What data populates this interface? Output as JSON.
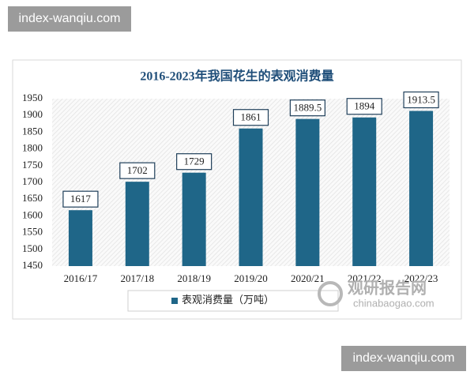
{
  "chart_data": {
    "type": "bar",
    "title": "2016-2023年我国花生的表观消费量",
    "categories": [
      "2016/17",
      "2017/18",
      "2018/19",
      "2019/20",
      "2020/21",
      "2021/22",
      "2022/23"
    ],
    "series": [
      {
        "name": "表观消费量（万吨）",
        "color": "#1f6688",
        "values": [
          1617,
          1702,
          1729,
          1861,
          1889.5,
          1894,
          1913.5
        ]
      }
    ],
    "ylim": [
      1450,
      1950
    ],
    "yticks": [
      1450,
      1500,
      1550,
      1600,
      1650,
      1700,
      1750,
      1800,
      1850,
      1900,
      1950
    ],
    "legend": "bottom"
  },
  "watermarks": [
    "index-wanqiu.com",
    "index-wanqiu.com"
  ],
  "logo": {
    "name": "观研报告网",
    "site": "chinabaogao.com"
  }
}
